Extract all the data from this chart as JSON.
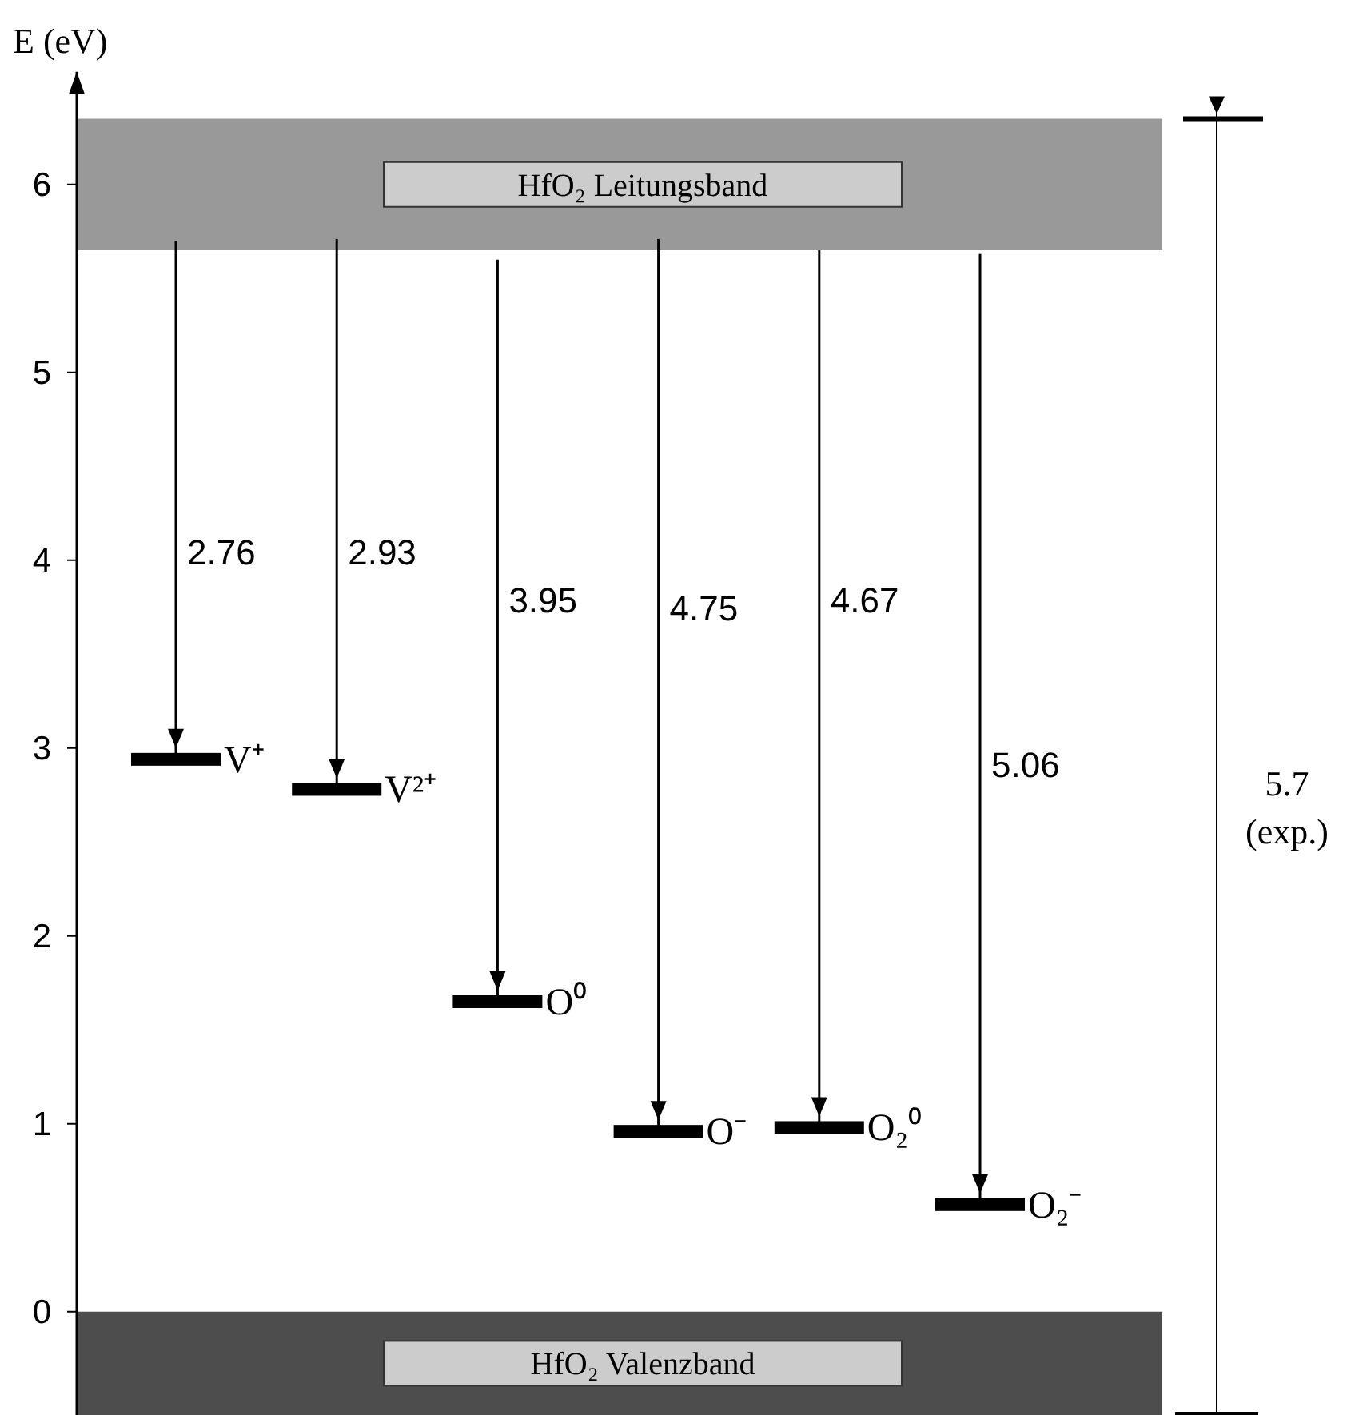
{
  "chart_data": {
    "type": "bar",
    "ylabel": "E (eV)",
    "categories": [
      "V⁺",
      "V²⁺",
      "O⁰",
      "O⁻",
      "O₂⁰",
      "O₂⁻"
    ],
    "base": [
      2.94,
      2.78,
      1.65,
      0.96,
      0.98,
      0.57
    ],
    "values": [
      2.76,
      2.93,
      3.95,
      4.75,
      4.67,
      5.06
    ],
    "color": "#000000",
    "ylim": [
      -0.55,
      6.6
    ],
    "yticks": [
      0,
      1,
      2,
      3,
      4,
      5,
      6
    ],
    "bands": [
      {
        "axis": "y",
        "from": 5.65,
        "to": 6.35,
        "label": "HfO₂ Leitungsband",
        "color": "#999999"
      },
      {
        "axis": "y",
        "from": -0.55,
        "to": 0,
        "label": "HfO₂ Valenzband",
        "color": "#4d4d4d"
      }
    ],
    "annotations": [
      "5.7",
      "(exp.)",
      "2.76",
      "2.93",
      "3.95",
      "4.75",
      "4.67",
      "5.06"
    ]
  }
}
